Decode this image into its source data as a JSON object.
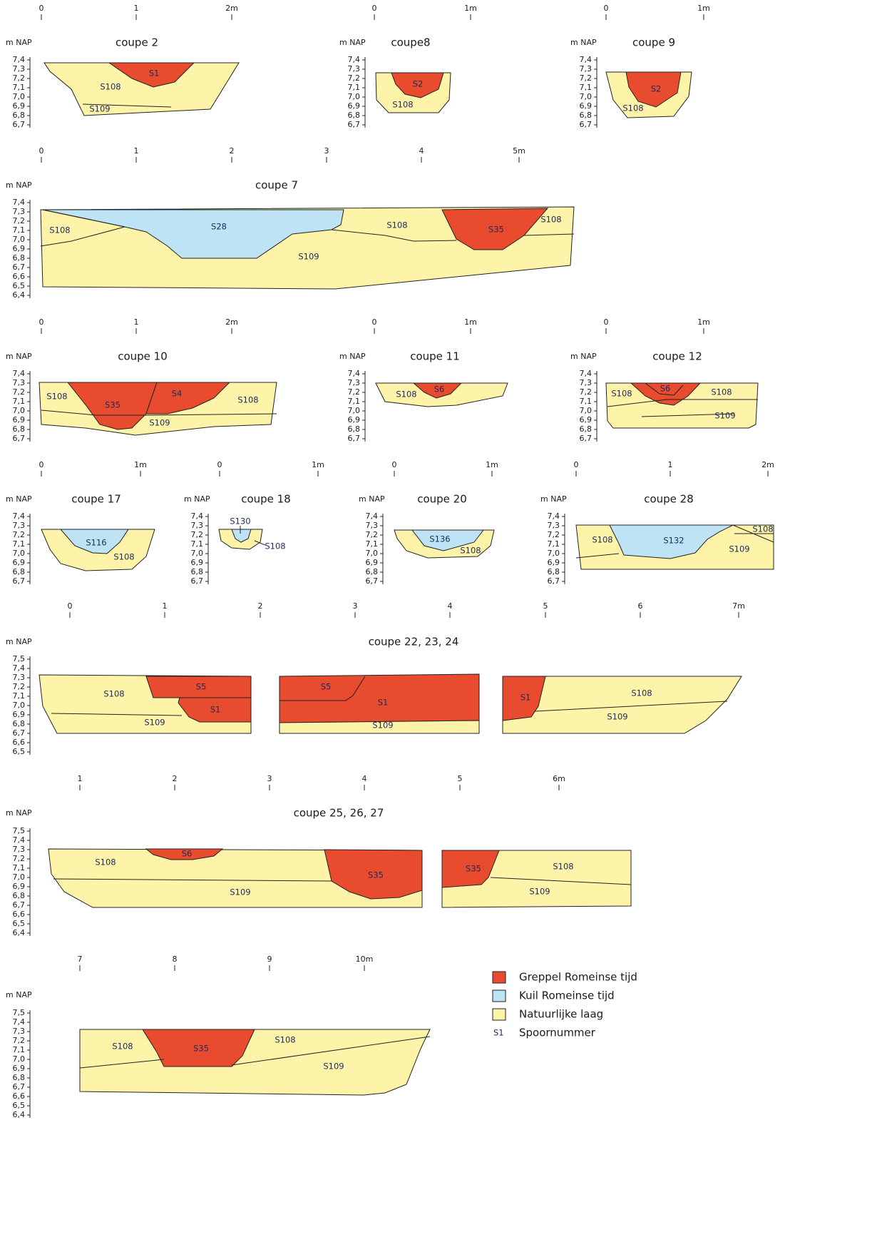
{
  "panels": [
    {
      "title": "coupe 2",
      "y_label": "m NAP",
      "y_ticks": [
        "7,4",
        "7,3",
        "7,2",
        "7,1",
        "7,0",
        "6,9",
        "6,8",
        "6,7"
      ],
      "scale": [
        "0",
        "1",
        "2m"
      ],
      "features": [
        "S1",
        "S108",
        "S109"
      ]
    },
    {
      "title": "coupe8",
      "y_label": "m NAP",
      "y_ticks": [
        "7,4",
        "7,3",
        "7,2",
        "7,1",
        "7,0",
        "6,9",
        "6,8",
        "6,7"
      ],
      "scale": [
        "0",
        "1m"
      ],
      "features": [
        "S2",
        "S108"
      ]
    },
    {
      "title": "coupe 9",
      "y_label": "m NAP",
      "y_ticks": [
        "7,4",
        "7,3",
        "7,2",
        "7,1",
        "7,0",
        "6,9",
        "6,8",
        "6,7"
      ],
      "scale": [
        "0",
        "1m"
      ],
      "features": [
        "S2",
        "S108"
      ]
    },
    {
      "title": "coupe 7",
      "y_label": "m NAP",
      "y_ticks": [
        "7,4",
        "7,3",
        "7,2",
        "7,1",
        "7,0",
        "6,9",
        "6,8",
        "6,7",
        "6,6",
        "6,5",
        "6,4"
      ],
      "scale": [
        "0",
        "1",
        "2",
        "3",
        "4",
        "5m"
      ],
      "features": [
        "S108",
        "S28",
        "S108",
        "S35",
        "S108",
        "S109"
      ]
    },
    {
      "title": "coupe 10",
      "y_label": "m NAP",
      "y_ticks": [
        "7,4",
        "7,3",
        "7,2",
        "7,1",
        "7,0",
        "6,9",
        "6,8",
        "6,7"
      ],
      "scale": [
        "0",
        "1",
        "2m"
      ],
      "features": [
        "S108",
        "S35",
        "S4",
        "S108",
        "S109"
      ]
    },
    {
      "title": "coupe 11",
      "y_label": "m NAP",
      "y_ticks": [
        "7,4",
        "7,3",
        "7,2",
        "7,1",
        "7,0",
        "6,9",
        "6,8",
        "6,7"
      ],
      "scale": [
        "0",
        "1m"
      ],
      "features": [
        "S108",
        "S6"
      ]
    },
    {
      "title": "coupe 12",
      "y_label": "m NAP",
      "y_ticks": [
        "7,4",
        "7,3",
        "7,2",
        "7,1",
        "7,0",
        "6,9",
        "6,8",
        "6,7"
      ],
      "scale": [
        "0",
        "1m"
      ],
      "features": [
        "S108",
        "S6",
        "S108",
        "S109"
      ]
    },
    {
      "title": "coupe 17",
      "y_label": "m NAP",
      "y_ticks": [
        "7,4",
        "7,3",
        "7,2",
        "7,1",
        "7,0",
        "6,9",
        "6,8",
        "6,7"
      ],
      "scale": [
        "0",
        "1m"
      ],
      "features": [
        "S116",
        "S108"
      ]
    },
    {
      "title": "coupe 18",
      "y_label": "m NAP",
      "y_ticks": [
        "7,4",
        "7,3",
        "7,2",
        "7,1",
        "7,0",
        "6,9",
        "6,8",
        "6,7"
      ],
      "scale": [
        "0",
        "1m"
      ],
      "features": [
        "S130",
        "S108"
      ]
    },
    {
      "title": "coupe 20",
      "y_label": "m NAP",
      "y_ticks": [
        "7,4",
        "7,3",
        "7,2",
        "7,1",
        "7,0",
        "6,9",
        "6,8",
        "6,7"
      ],
      "scale": [
        "0",
        "1m"
      ],
      "features": [
        "S136",
        "S108"
      ]
    },
    {
      "title": "coupe 28",
      "y_label": "m NAP",
      "y_ticks": [
        "7,4",
        "7,3",
        "7,2",
        "7,1",
        "7,0",
        "6,9",
        "6,8",
        "6,7"
      ],
      "scale": [
        "0",
        "1",
        "2m"
      ],
      "features": [
        "S108",
        "S132",
        "S109",
        "S108"
      ]
    },
    {
      "title": "coupe 22, 23, 24",
      "y_label": "m NAP",
      "y_ticks": [
        "7,5",
        "7,4",
        "7,3",
        "7,2",
        "7,1",
        "7,0",
        "6,9",
        "6,8",
        "6,7",
        "6,6",
        "6,5"
      ],
      "scale": [
        "0",
        "1",
        "2",
        "3",
        "4",
        "5",
        "6",
        "7m"
      ],
      "features": [
        "S108",
        "S5",
        "S1",
        "S109",
        "S5",
        "S1",
        "S109",
        "S1",
        "S108",
        "S109"
      ]
    },
    {
      "title": "coupe 25, 26, 27",
      "y_label": "m NAP",
      "y_ticks": [
        "7,5",
        "7,4",
        "7,3",
        "7,2",
        "7,1",
        "7,0",
        "6,9",
        "6,8",
        "6,7",
        "6,6",
        "6,5",
        "6,4"
      ],
      "scale": [
        "1",
        "2",
        "3",
        "4",
        "5",
        "6m"
      ],
      "features": [
        "S108",
        "S6",
        "S35",
        "S109",
        "S35",
        "S108",
        "S109"
      ]
    },
    {
      "y_label": "m NAP",
      "y_ticks": [
        "7,5",
        "7,4",
        "7,3",
        "7,2",
        "7,1",
        "7,0",
        "6,9",
        "6,8",
        "6,7",
        "6,6",
        "6,5",
        "6,4"
      ],
      "scale": [
        "7",
        "8",
        "9",
        "10m"
      ],
      "features": [
        "S108",
        "S35",
        "S108",
        "S109"
      ]
    }
  ],
  "legend": [
    {
      "label": "Greppel Romeinse tijd",
      "color": "#e84b2e"
    },
    {
      "label": "Kuil Romeinse tijd",
      "color": "#bde3f4"
    },
    {
      "label": "Natuurlijke laag",
      "color": "#fdf3a9"
    },
    {
      "label": "Spoornummer",
      "key": "S1"
    }
  ]
}
